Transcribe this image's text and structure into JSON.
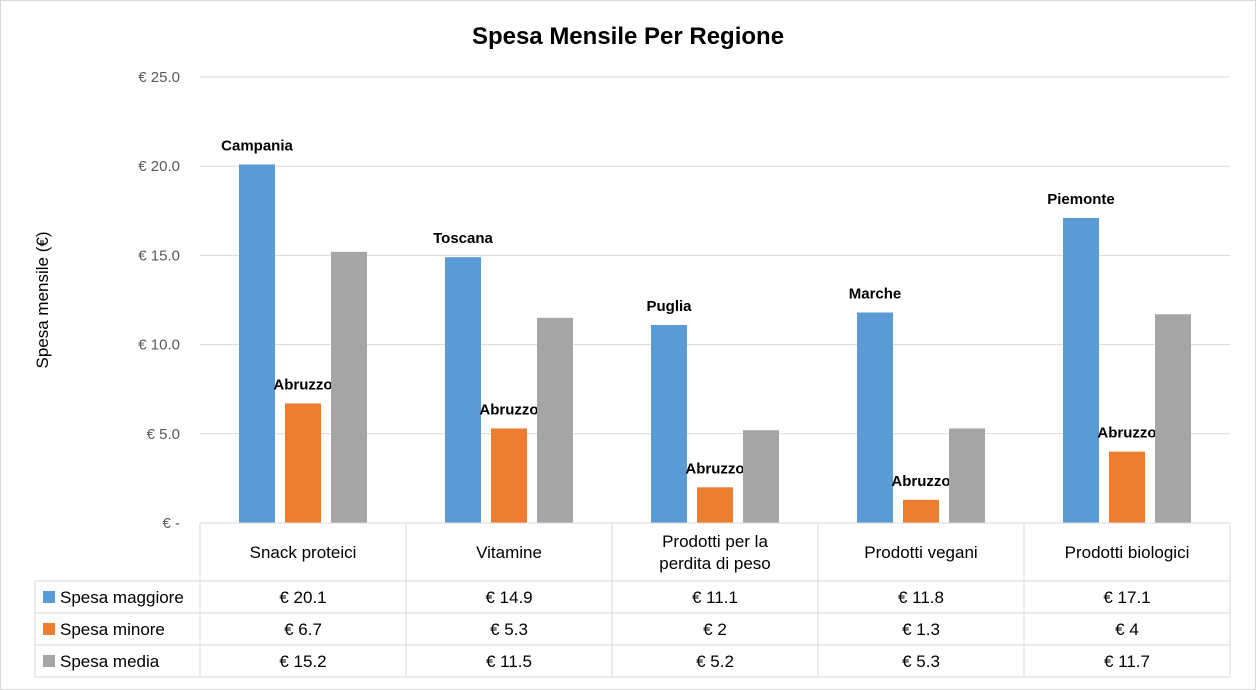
{
  "chart_data": {
    "type": "bar",
    "title": "Spesa Mensile Per Regione",
    "ylabel": "Spesa mensile (€)",
    "xlabel": "",
    "ylim": [
      0,
      25
    ],
    "yticks": [
      0,
      5,
      10,
      15,
      20,
      25
    ],
    "ytick_labels": [
      "€ -",
      "€ 5.0",
      "€ 10.0",
      "€ 15.0",
      "€ 20.0",
      "€ 25.0"
    ],
    "grid": true,
    "legend": "data-table-left",
    "categories": [
      [
        "Snack proteici"
      ],
      [
        "Vitamine"
      ],
      [
        "Prodotti per la",
        "perdita di peso"
      ],
      [
        "Prodotti vegani"
      ],
      [
        "Prodotti biologici"
      ]
    ],
    "series": [
      {
        "name": "Spesa maggiore",
        "color": "#5b9bd5",
        "values": [
          20.1,
          14.9,
          11.1,
          11.8,
          17.1
        ],
        "table_labels": [
          "€ 20.1",
          "€ 14.9",
          "€ 11.1",
          "€ 11.8",
          "€ 17.1"
        ],
        "data_labels": [
          "Campania",
          "Toscana",
          "Puglia",
          "Marche",
          "Piemonte"
        ]
      },
      {
        "name": "Spesa minore",
        "color": "#ed7d31",
        "values": [
          6.7,
          5.3,
          2.0,
          1.3,
          4.0
        ],
        "table_labels": [
          "€ 6.7",
          "€ 5.3",
          "€ 2",
          "€ 1.3",
          "€ 4"
        ],
        "data_labels": [
          "Abruzzo",
          "Abruzzo",
          "Abruzzo",
          "Abruzzo",
          "Abruzzo"
        ]
      },
      {
        "name": "Spesa media",
        "color": "#a5a5a5",
        "values": [
          15.2,
          11.5,
          5.2,
          5.3,
          11.7
        ],
        "table_labels": [
          "€ 15.2",
          "€ 11.5",
          "€ 5.2",
          "€ 5.3",
          "€ 11.7"
        ],
        "data_labels": []
      }
    ]
  }
}
